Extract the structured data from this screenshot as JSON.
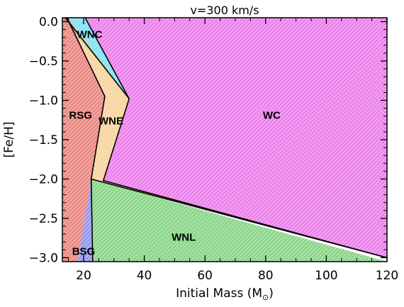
{
  "chart_data": {
    "type": "area",
    "title": "v=300 km/s",
    "xlabel_main": "Initial Mass (M",
    "xlabel_sub": "⊙",
    "xlabel_end": ")",
    "ylabel": "[Fe/H]",
    "xlim": [
      13,
      120
    ],
    "ylim": [
      -3.05,
      0.05
    ],
    "xticks": [
      20,
      40,
      60,
      80,
      100,
      120
    ],
    "xtick_labels": [
      "20",
      "40",
      "60",
      "80",
      "100",
      "120"
    ],
    "yticks": [
      0.0,
      -0.5,
      -1.0,
      -1.5,
      -2.0,
      -2.5,
      -3.0
    ],
    "ytick_labels": [
      "0.0",
      "−0.5",
      "−1.0",
      "−1.5",
      "−2.0",
      "−2.5",
      "−3.0"
    ],
    "regions": [
      {
        "name": "WC",
        "label": "WC",
        "color": "#e34fe3",
        "label_pos": [
          82,
          -1.2
        ],
        "polygon": [
          [
            20.5,
            0.05
          ],
          [
            120,
            0.05
          ],
          [
            120,
            -3.0
          ],
          [
            26.5,
            -2.02
          ],
          [
            35,
            -0.98
          ],
          [
            20.5,
            0.05
          ]
        ]
      },
      {
        "name": "WNC",
        "label": "WNC",
        "color": "#4fd6ec",
        "label_pos": [
          22,
          -0.17
        ],
        "polygon": [
          [
            13,
            0.05
          ],
          [
            20.5,
            0.05
          ],
          [
            35,
            -0.98
          ],
          [
            13,
            0.05
          ]
        ]
      },
      {
        "name": "RSG",
        "label": "RSG",
        "color": "#e05a52",
        "label_pos": [
          19,
          -1.2
        ],
        "polygon": [
          [
            13,
            0.05
          ],
          [
            15,
            0.05
          ],
          [
            27,
            -0.95
          ],
          [
            22.5,
            -2.0
          ],
          [
            18,
            -3.05
          ],
          [
            13,
            -3.05
          ]
        ]
      },
      {
        "name": "WNE",
        "label": "WNE",
        "color": "#f2c37a",
        "label_pos": [
          29,
          -1.27
        ],
        "polygon": [
          [
            15,
            0.05
          ],
          [
            35,
            -0.98
          ],
          [
            26.5,
            -2.02
          ],
          [
            120,
            -3.0
          ],
          [
            22.5,
            -2.0
          ],
          [
            27,
            -0.95
          ]
        ]
      },
      {
        "name": "WNL",
        "label": "WNL",
        "color": "#5dc45a",
        "label_pos": [
          53,
          -2.75
        ],
        "polygon": [
          [
            22.5,
            -2.0
          ],
          [
            120,
            -3.05
          ],
          [
            23,
            -3.05
          ]
        ]
      },
      {
        "name": "BSG",
        "label": "BSG",
        "color": "#6a6ee0",
        "label_pos": [
          20,
          -2.93
        ],
        "polygon": [
          [
            22.5,
            -2.0
          ],
          [
            23,
            -3.05
          ],
          [
            18,
            -3.05
          ]
        ]
      }
    ],
    "boundaries": [
      [
        [
          14.5,
          0.05
        ],
        [
          27,
          -0.95
        ],
        [
          22.5,
          -2.0
        ],
        [
          120,
          -3.0
        ]
      ],
      [
        [
          20.5,
          0.05
        ],
        [
          35,
          -0.98
        ],
        [
          26.5,
          -2.02
        ],
        [
          120,
          -3.0
        ]
      ],
      [
        [
          14,
          0.05
        ],
        [
          35,
          -0.98
        ]
      ],
      [
        [
          22.5,
          -2.0
        ],
        [
          23,
          -3.05
        ]
      ]
    ]
  }
}
